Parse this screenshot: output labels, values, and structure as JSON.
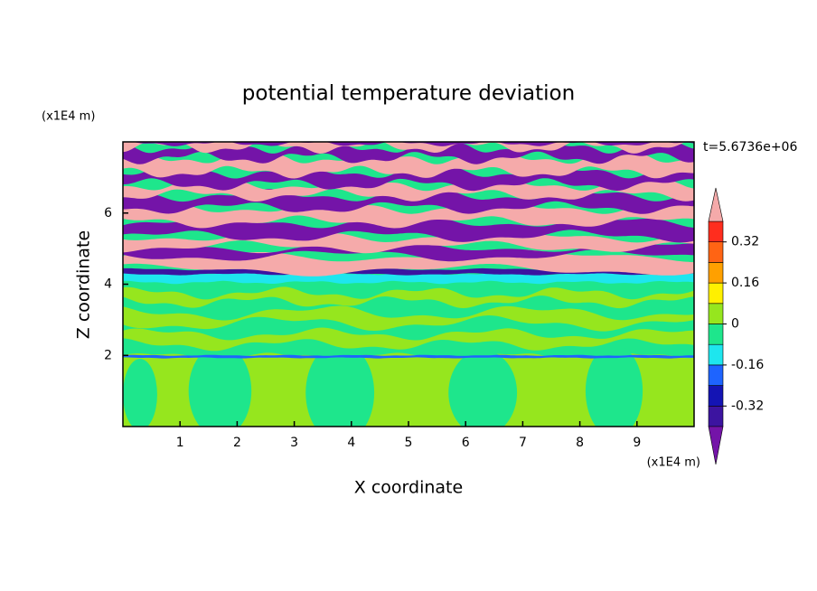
{
  "chart_data": {
    "type": "contour",
    "title": "potential temperature deviation",
    "x_label": "X coordinate",
    "y_label": "Z coordinate",
    "x_unit": "(x1E4 m)",
    "y_unit": "(x1E4 m)",
    "annotation": "t=5.6736e+06",
    "xlim": [
      0,
      10
    ],
    "ylim": [
      0,
      8
    ],
    "xticks": [
      1,
      2,
      3,
      4,
      5,
      6,
      7,
      8,
      9
    ],
    "yticks": [
      2,
      4,
      6
    ],
    "colorbar": {
      "levels": [
        -0.4,
        -0.32,
        -0.24,
        -0.16,
        -0.08,
        0,
        0.08,
        0.16,
        0.24,
        0.32,
        0.4
      ],
      "ticks": [
        -0.32,
        -0.16,
        0,
        0.16,
        0.32
      ],
      "colors": [
        "#7414a8",
        "#3c14a0",
        "#1414b4",
        "#1e64ff",
        "#1ee6ee",
        "#1ee68c",
        "#96e61e",
        "#fff000",
        "#ffa000",
        "#ff6414",
        "#ff2d1e",
        "#f5aaaa"
      ],
      "extend": "both"
    }
  }
}
